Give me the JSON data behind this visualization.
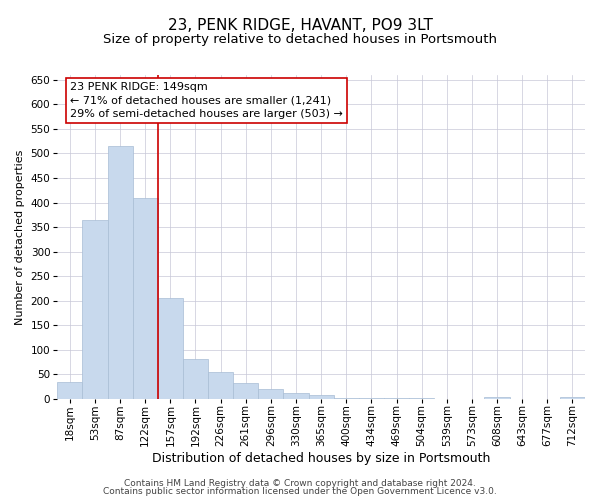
{
  "title": "23, PENK RIDGE, HAVANT, PO9 3LT",
  "subtitle": "Size of property relative to detached houses in Portsmouth",
  "xlabel": "Distribution of detached houses by size in Portsmouth",
  "ylabel": "Number of detached properties",
  "categories": [
    "18sqm",
    "53sqm",
    "87sqm",
    "122sqm",
    "157sqm",
    "192sqm",
    "226sqm",
    "261sqm",
    "296sqm",
    "330sqm",
    "365sqm",
    "400sqm",
    "434sqm",
    "469sqm",
    "504sqm",
    "539sqm",
    "573sqm",
    "608sqm",
    "643sqm",
    "677sqm",
    "712sqm"
  ],
  "values": [
    35,
    365,
    515,
    410,
    205,
    82,
    55,
    33,
    20,
    11,
    7,
    1,
    1,
    1,
    1,
    0,
    0,
    4,
    0,
    0,
    4
  ],
  "bar_color": "#c8d9ed",
  "bar_edge_color": "#a8bdd4",
  "vline_x_index": 4,
  "vline_color": "#cc0000",
  "annotation_line1": "23 PENK RIDGE: 149sqm",
  "annotation_line2": "← 71% of detached houses are smaller (1,241)",
  "annotation_line3": "29% of semi-detached houses are larger (503) →",
  "annotation_box_color": "#ffffff",
  "annotation_box_edge": "#cc0000",
  "ylim": [
    0,
    660
  ],
  "yticks": [
    0,
    50,
    100,
    150,
    200,
    250,
    300,
    350,
    400,
    450,
    500,
    550,
    600,
    650
  ],
  "footer1": "Contains HM Land Registry data © Crown copyright and database right 2024.",
  "footer2": "Contains public sector information licensed under the Open Government Licence v3.0.",
  "bg_color": "#ffffff",
  "grid_color": "#c8c8d8",
  "title_fontsize": 11,
  "subtitle_fontsize": 9.5,
  "xlabel_fontsize": 9,
  "ylabel_fontsize": 8,
  "tick_fontsize": 7.5,
  "annotation_fontsize": 8,
  "footer_fontsize": 6.5
}
